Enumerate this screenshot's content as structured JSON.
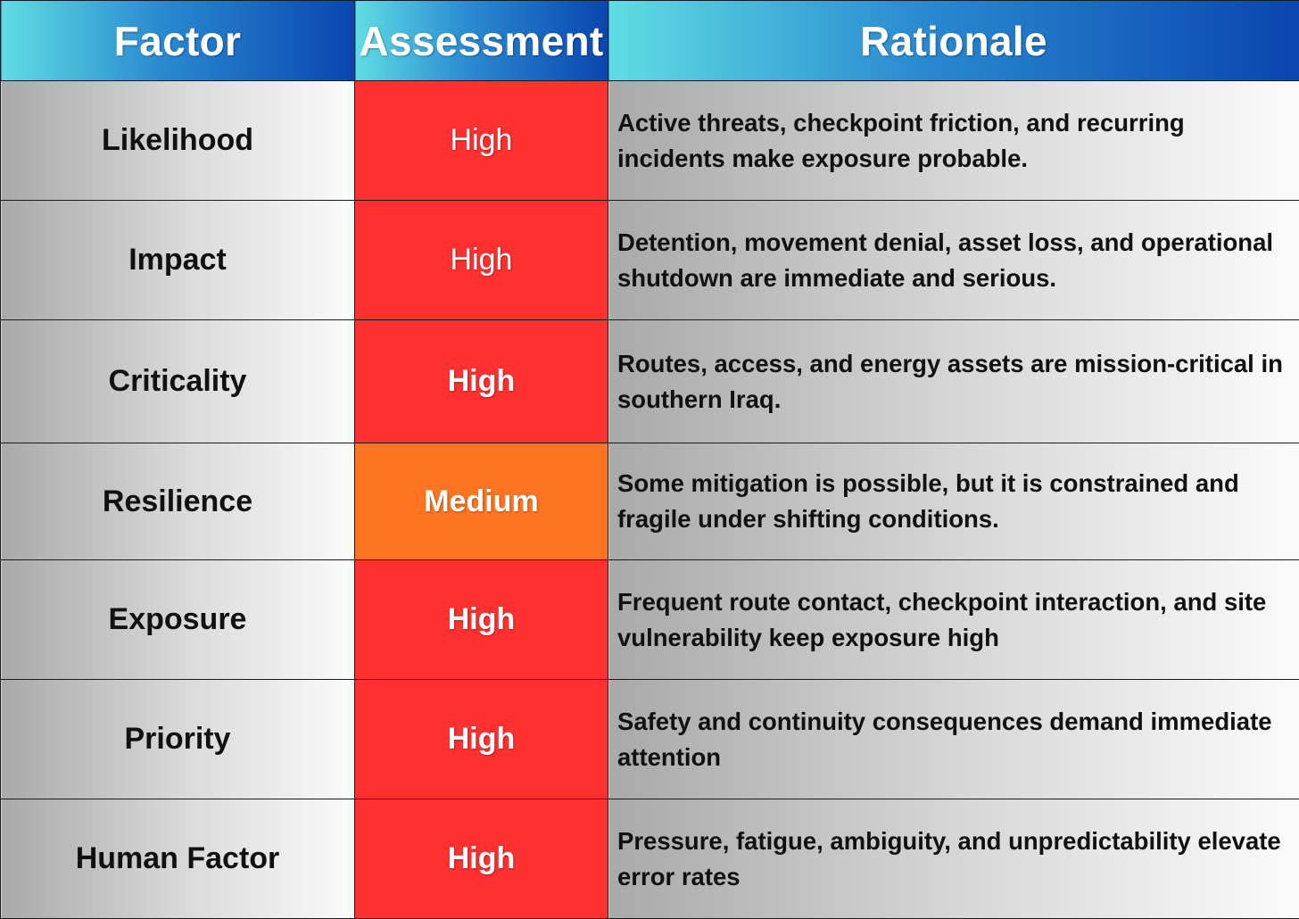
{
  "table": {
    "headers": {
      "factor": "Factor",
      "assessment": "Assessment",
      "rationale": "Rationale"
    },
    "rows": [
      {
        "factor": "Likelihood",
        "assessment": "High",
        "assessment_color": "#ff3030",
        "rationale": "Active threats, checkpoint friction, and recurring incidents make exposure probable."
      },
      {
        "factor": "Impact",
        "assessment": "High",
        "assessment_color": "#ff3030",
        "rationale": "Detention, movement denial, asset loss, and operational shutdown are immediate and serious."
      },
      {
        "factor": "Criticality",
        "assessment": "High",
        "assessment_color": "#ff3030",
        "rationale": "Routes, access, and energy assets are mission-critical in southern Iraq."
      },
      {
        "factor": "Resilience",
        "assessment": "Medium",
        "assessment_color": "#ff7420",
        "rationale": "Some mitigation is possible, but it is constrained and fragile under shifting conditions."
      },
      {
        "factor": "Exposure",
        "assessment": "High",
        "assessment_color": "#ff3030",
        "rationale": "Frequent route contact, checkpoint interaction, and site vulnerability keep exposure high"
      },
      {
        "factor": "Priority",
        "assessment": "High",
        "assessment_color": "#ff3030",
        "rationale": "Safety and continuity consequences demand immediate attention"
      },
      {
        "factor": "Human Factor",
        "assessment": "High",
        "assessment_color": "#ff3030",
        "rationale": "Pressure, fatigue, ambiguity, and unpredictability elevate error rates"
      }
    ]
  }
}
